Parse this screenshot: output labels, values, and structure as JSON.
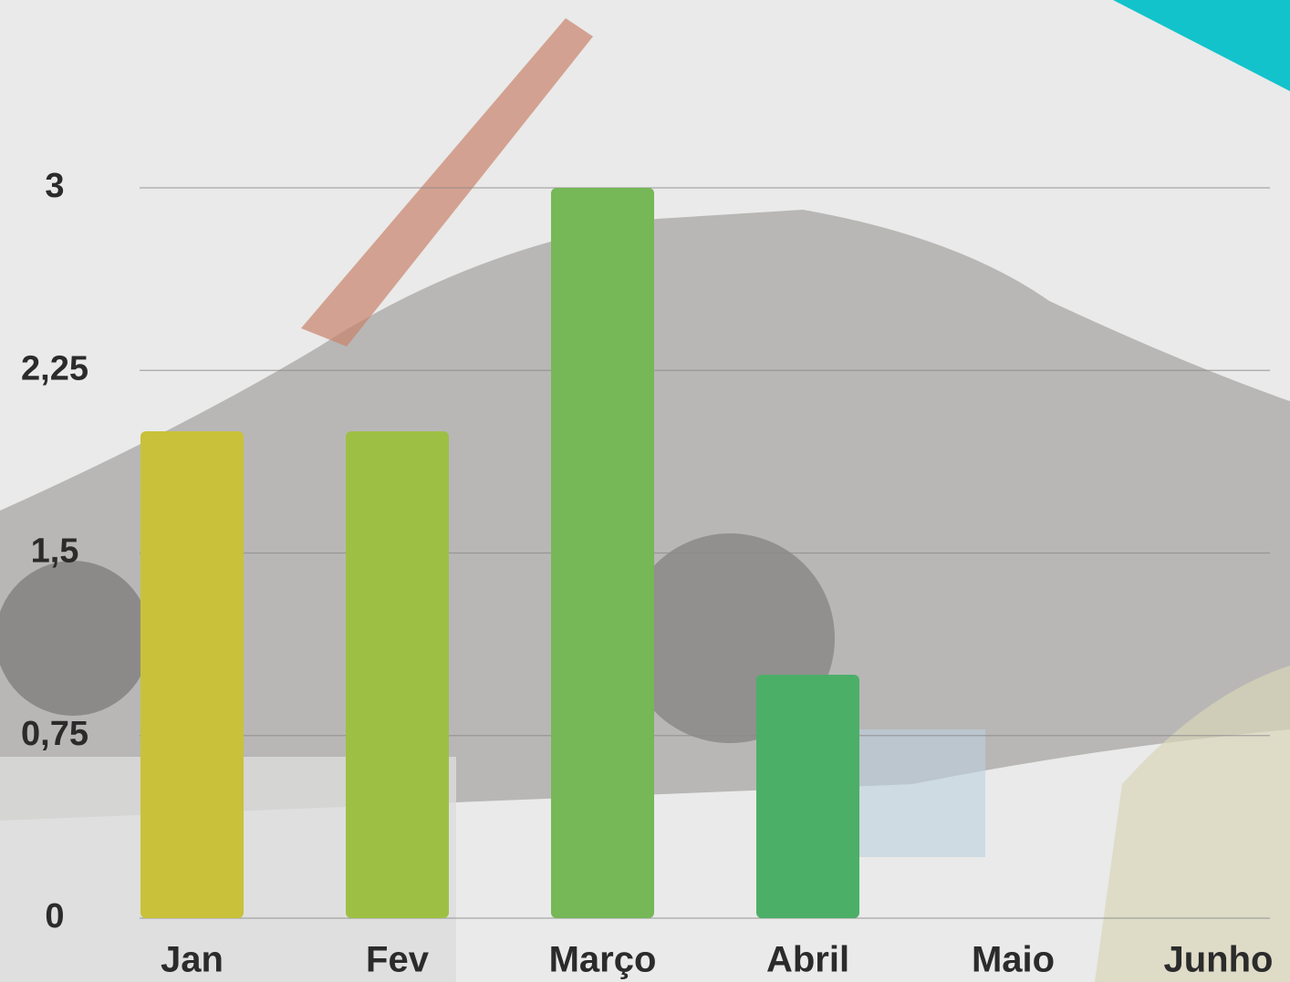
{
  "chart_data": {
    "type": "bar",
    "categories": [
      "Jan",
      "Fev",
      "Março",
      "Abril",
      "Maio",
      "Junho"
    ],
    "values": [
      2,
      2,
      3,
      1,
      0,
      0
    ],
    "colors": [
      "#c9c13a",
      "#9dc044",
      "#76b757",
      "#4caf68",
      "#3fa876",
      "#2fa08a"
    ],
    "ylim": [
      0,
      3
    ],
    "yticks": [
      0,
      {
        "value": 0.75,
        "label": "0,75"
      },
      {
        "value": 1.5,
        "label": "1,5"
      },
      {
        "value": 2.25,
        "label": "2,25"
      },
      3
    ],
    "grid": true
  }
}
